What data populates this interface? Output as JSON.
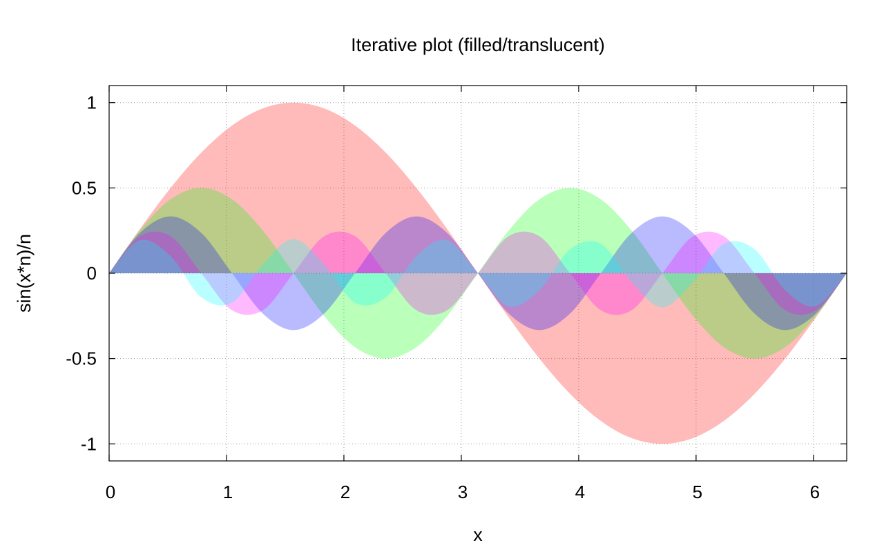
{
  "chart_data": {
    "type": "area",
    "title": "Iterative plot (filled/translucent)",
    "xlabel": "x",
    "ylabel": "sin(x*n)/n",
    "xlim": [
      0,
      6.2832
    ],
    "ylim": [
      -1.1,
      1.1
    ],
    "grid": true,
    "legend": "none",
    "fill_opacity": 0.27,
    "x_ticks": [
      {
        "value": 0,
        "label": "0"
      },
      {
        "value": 1,
        "label": "1"
      },
      {
        "value": 2,
        "label": "2"
      },
      {
        "value": 3,
        "label": "3"
      },
      {
        "value": 4,
        "label": "4"
      },
      {
        "value": 5,
        "label": "5"
      },
      {
        "value": 6,
        "label": "6"
      }
    ],
    "y_ticks": [
      {
        "value": 1,
        "label": "1"
      },
      {
        "value": 0.5,
        "label": "0.5"
      },
      {
        "value": 0,
        "label": "0"
      },
      {
        "value": -0.5,
        "label": "-0.5"
      },
      {
        "value": -1,
        "label": "-1"
      }
    ],
    "x": [
      0,
      0.2618,
      0.5236,
      0.7854,
      1.0472,
      1.309,
      1.5708,
      1.8326,
      2.0944,
      2.3562,
      2.618,
      2.8798,
      3.1416,
      3.4034,
      3.6652,
      3.927,
      4.1888,
      4.4506,
      4.7124,
      4.9742,
      5.236,
      5.4978,
      5.7596,
      6.0214,
      6.2832
    ],
    "series": [
      {
        "n": 1,
        "color": "#ff0000",
        "values": [
          0,
          0.259,
          0.5,
          0.707,
          0.866,
          0.966,
          1,
          0.966,
          0.866,
          0.707,
          0.5,
          0.259,
          0,
          -0.259,
          -0.5,
          -0.707,
          -0.866,
          -0.966,
          -1,
          -0.966,
          -0.866,
          -0.707,
          -0.5,
          -0.259,
          0
        ]
      },
      {
        "n": 2,
        "color": "#00ff00",
        "values": [
          0,
          0.25,
          0.433,
          0.5,
          0.433,
          0.25,
          0,
          -0.25,
          -0.433,
          -0.5,
          -0.433,
          -0.25,
          0,
          0.25,
          0.433,
          0.5,
          0.433,
          0.25,
          0,
          -0.25,
          -0.433,
          -0.5,
          -0.433,
          -0.25,
          0
        ]
      },
      {
        "n": 3,
        "color": "#0000ff",
        "values": [
          0,
          0.236,
          0.333,
          0.236,
          0,
          -0.236,
          -0.333,
          -0.236,
          0,
          0.236,
          0.333,
          0.236,
          0,
          -0.236,
          -0.333,
          -0.236,
          0,
          0.236,
          0.333,
          0.236,
          0,
          -0.236,
          -0.333,
          -0.236,
          0
        ]
      },
      {
        "n": 4,
        "color": "#ff00ff",
        "values": [
          0,
          0.217,
          0.217,
          0,
          -0.217,
          -0.217,
          0,
          0.217,
          0.217,
          0,
          -0.217,
          -0.217,
          0,
          0.217,
          0.217,
          0,
          -0.217,
          -0.217,
          0,
          0.217,
          0.217,
          0,
          -0.217,
          -0.217,
          0
        ]
      },
      {
        "n": 5,
        "color": "#00ffff",
        "values": [
          0,
          0.193,
          0.1,
          -0.141,
          -0.173,
          0.052,
          0.2,
          0.052,
          -0.173,
          -0.141,
          0.1,
          0.193,
          0,
          -0.193,
          -0.1,
          0.141,
          0.173,
          -0.052,
          -0.2,
          -0.052,
          0.173,
          0.141,
          -0.1,
          -0.193,
          0
        ]
      }
    ]
  }
}
